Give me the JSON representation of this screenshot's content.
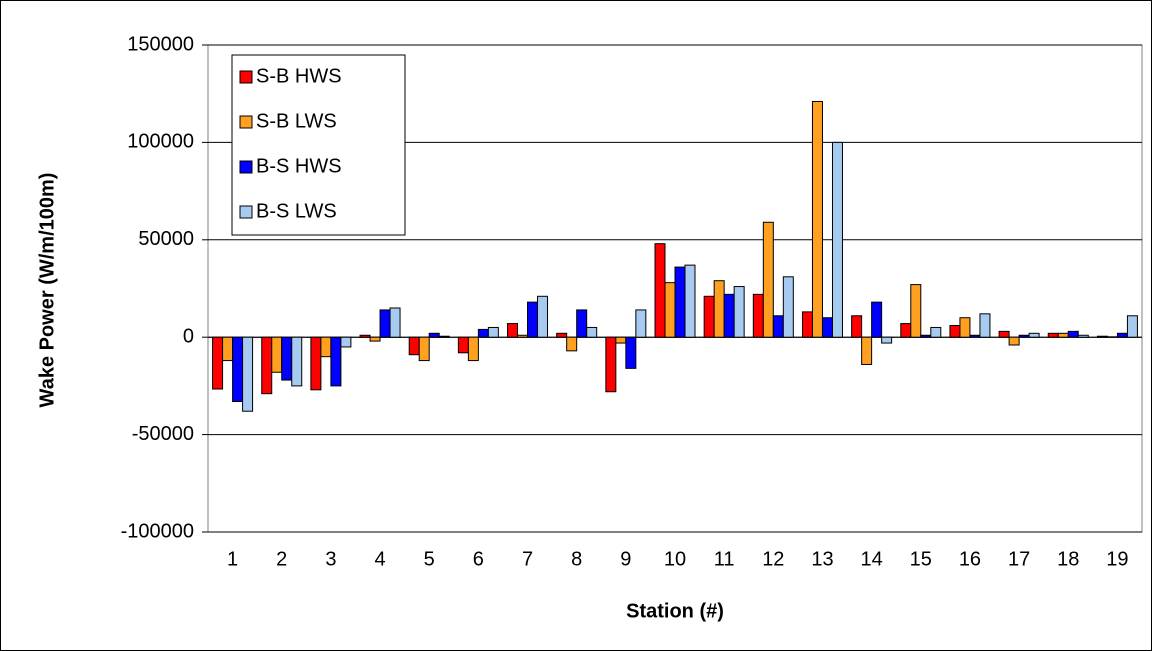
{
  "chart_data": {
    "type": "bar",
    "x_label": "Station (#)",
    "y_label": "Wake Power (W/m/100m)",
    "categories": [
      "1",
      "2",
      "3",
      "4",
      "5",
      "6",
      "7",
      "8",
      "9",
      "10",
      "11",
      "12",
      "13",
      "14",
      "15",
      "16",
      "17",
      "18",
      "19"
    ],
    "series": [
      {
        "name": "S-B HWS",
        "color": "#ff0000",
        "values": [
          -26600,
          -29000,
          -27000,
          1000,
          -9000,
          -8000,
          7000,
          2000,
          -28000,
          48000,
          21000,
          22000,
          13000,
          11000,
          7000,
          6000,
          3000,
          2000,
          500
        ]
      },
      {
        "name": "S-B LWS",
        "color": "#ffa020",
        "values": [
          -12000,
          -18000,
          -10000,
          -2000,
          -12000,
          -12000,
          1000,
          -7000,
          -3000,
          28000,
          29000,
          59000,
          121000,
          -14000,
          27000,
          10000,
          -4000,
          2000,
          200
        ]
      },
      {
        "name": "B-S HWS",
        "color": "#0000ff",
        "values": [
          -33000,
          -22000,
          -25000,
          14000,
          2000,
          4000,
          18000,
          14000,
          -16000,
          36000,
          22000,
          11000,
          10000,
          18000,
          1000,
          1000,
          1000,
          3000,
          2000
        ]
      },
      {
        "name": "B-S LWS",
        "color": "#a6caf0",
        "values": [
          -38000,
          -25000,
          -5000,
          15000,
          500,
          5000,
          21000,
          5000,
          14000,
          37000,
          26000,
          31000,
          100000,
          -3000,
          5000,
          12000,
          2000,
          1000,
          11000
        ]
      }
    ],
    "ylim": [
      -100000,
      150000
    ],
    "yticks": [
      -100000,
      -50000,
      0,
      50000,
      100000,
      150000
    ],
    "grid": true,
    "legend": "upper left"
  }
}
